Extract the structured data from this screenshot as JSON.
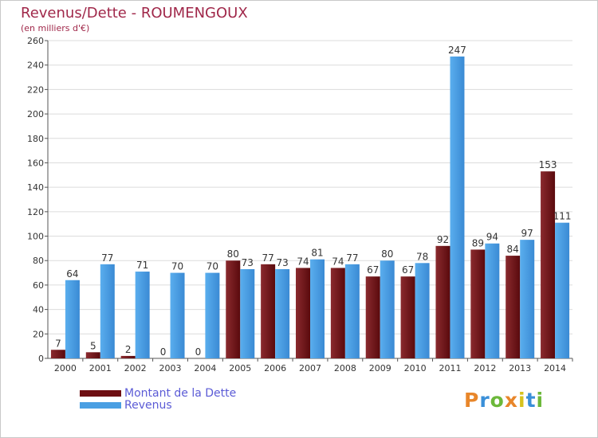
{
  "title": "Revenus/Dette - ROUMENGOUX",
  "subtitle": "(en milliers d'€)",
  "logo": {
    "text": "Proxiti"
  },
  "legend": [
    {
      "label": "Montant de la Dette",
      "color": "#6e0f12",
      "text_color": "#5b5bd6"
    },
    {
      "label": "Revenus",
      "color": "#4a9fe3",
      "text_color": "#5b5bd6"
    }
  ],
  "chart_data": {
    "type": "bar",
    "categories": [
      "2000",
      "2001",
      "2002",
      "2003",
      "2004",
      "2005",
      "2006",
      "2007",
      "2008",
      "2009",
      "2010",
      "2011",
      "2012",
      "2013",
      "2014"
    ],
    "series": [
      {
        "name": "Montant de la Dette",
        "color": "#6e0f12",
        "values": [
          7,
          5,
          2,
          0,
          0,
          80,
          77,
          74,
          74,
          67,
          67,
          92,
          89,
          84,
          153
        ]
      },
      {
        "name": "Revenus",
        "color": "#4a9fe3",
        "values": [
          64,
          77,
          71,
          70,
          70,
          73,
          73,
          81,
          77,
          80,
          78,
          247,
          94,
          97,
          111
        ]
      }
    ],
    "ylim": [
      0,
      260
    ],
    "yticks": [
      0,
      20,
      40,
      60,
      80,
      100,
      120,
      140,
      160,
      180,
      200,
      220,
      240,
      260
    ],
    "grid": true,
    "legend_position": "bottom-left"
  }
}
